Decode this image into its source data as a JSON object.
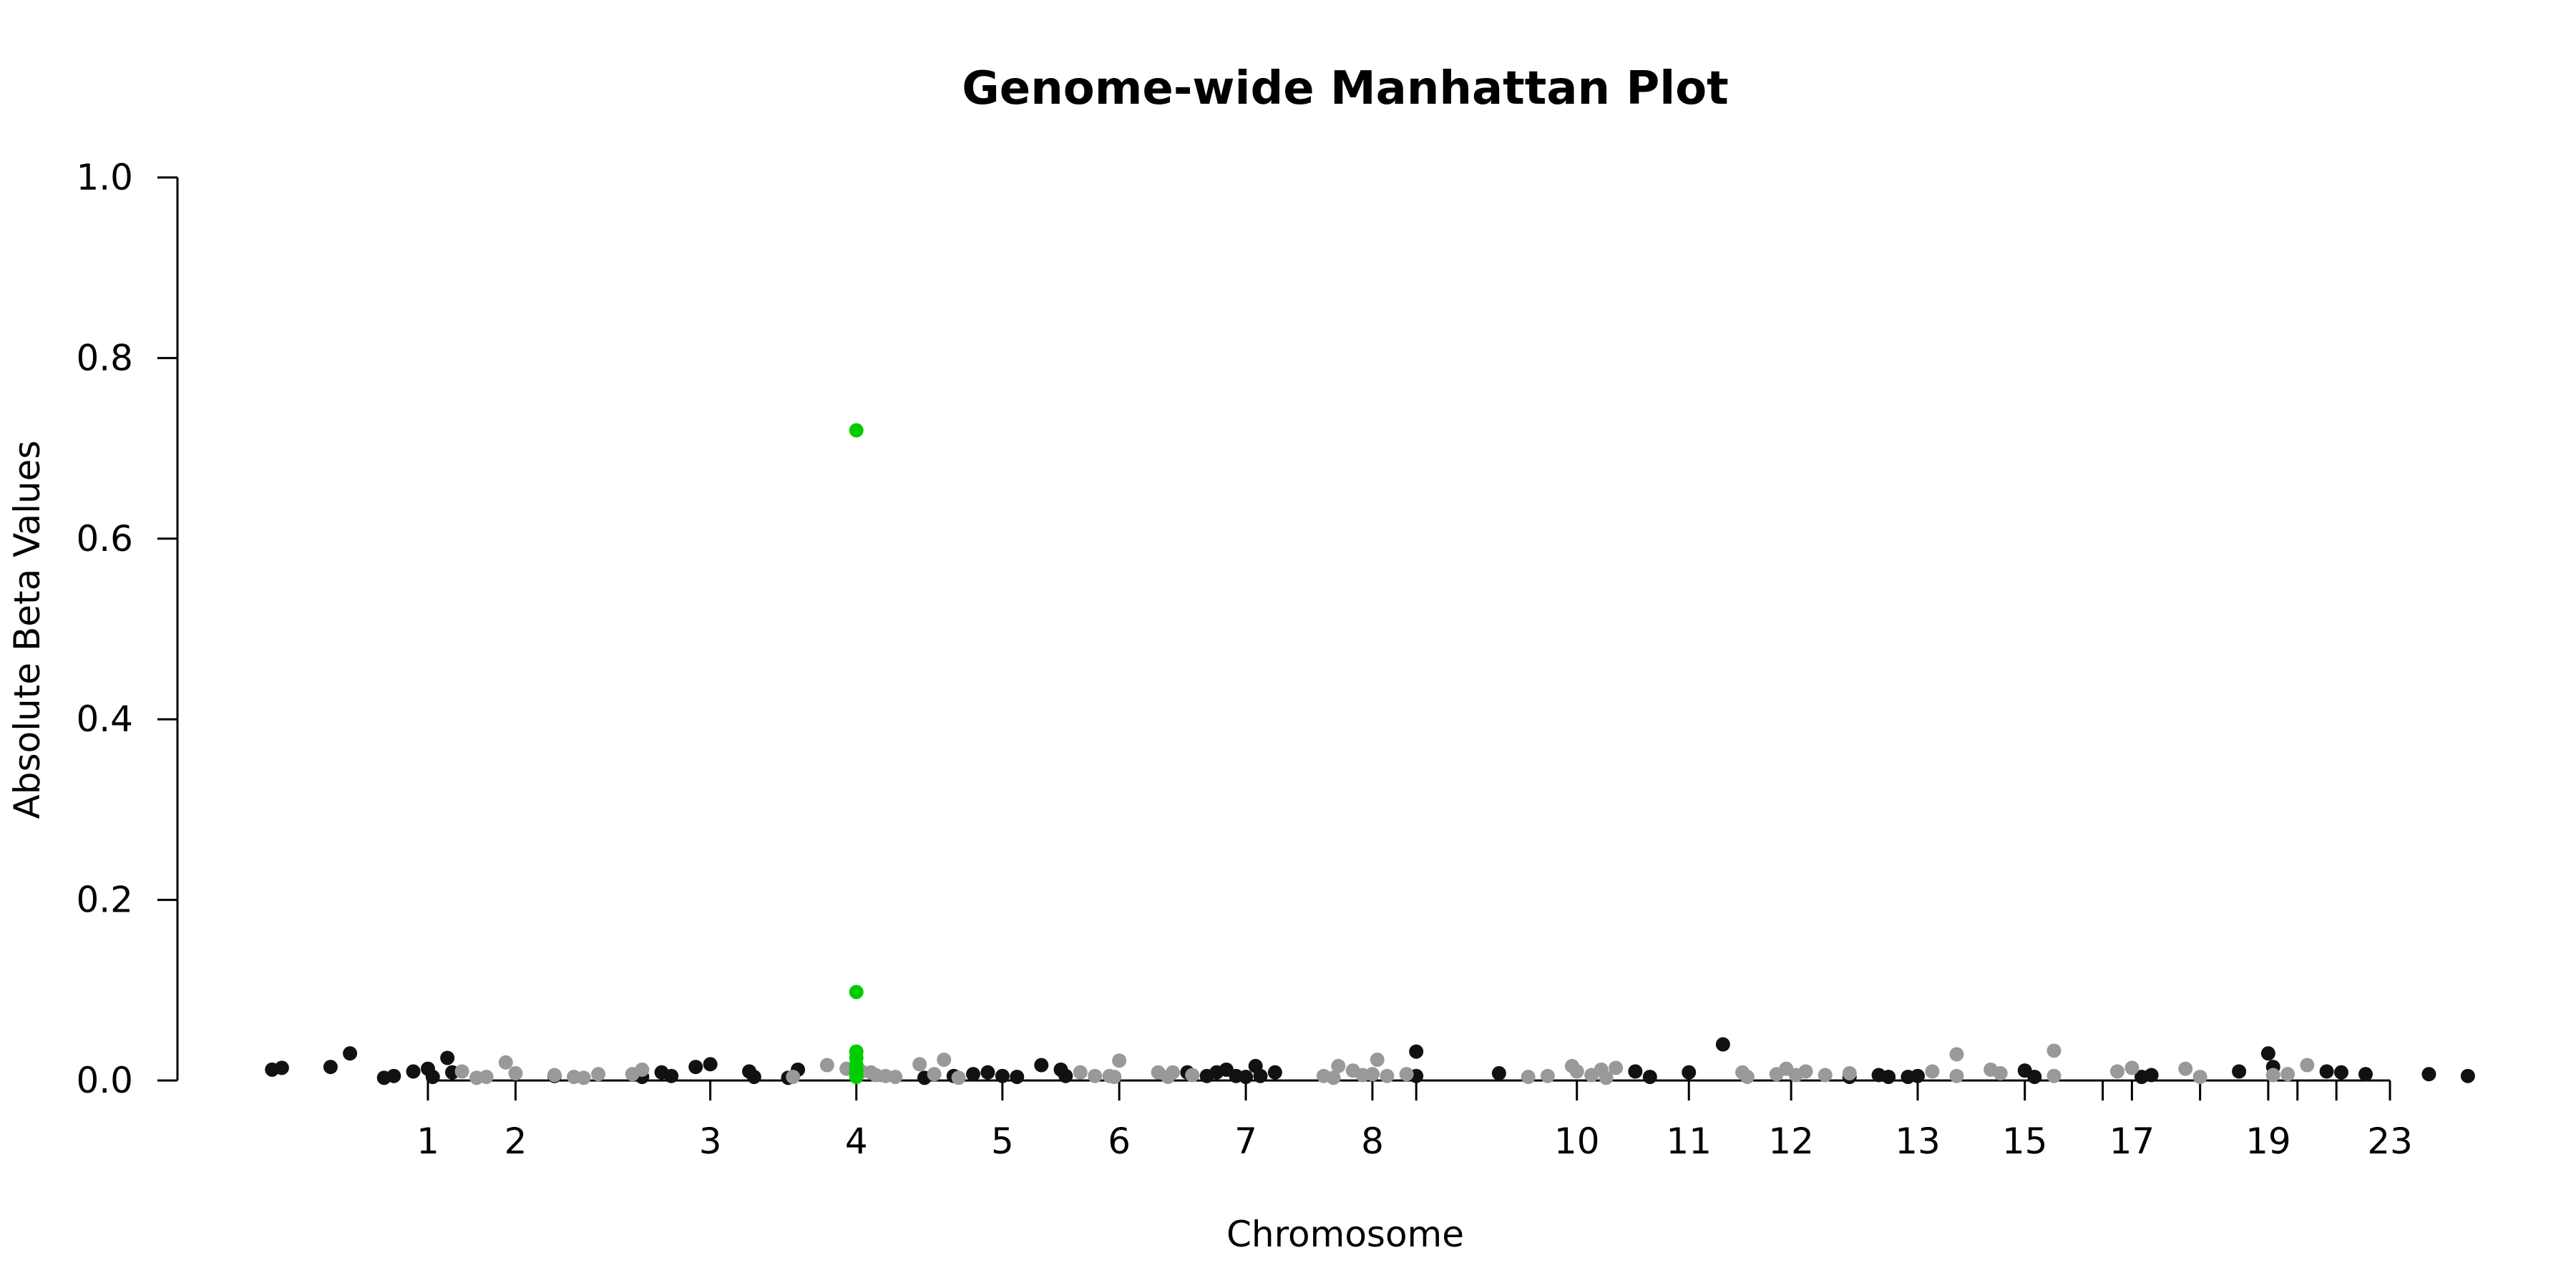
{
  "chart_data": {
    "type": "scatter",
    "title": "Genome-wide Manhattan Plot",
    "xlabel": "Chromosome",
    "ylabel": "Absolute Beta Values",
    "ylim": [
      0,
      1
    ],
    "xlim": [
      -2.5,
      24.5
    ],
    "yticks": [
      0.0,
      0.2,
      0.4,
      0.6,
      0.8,
      1.0
    ],
    "ytick_labels": [
      "0.0",
      "0.2",
      "0.4",
      "0.6",
      "0.8",
      "1.0"
    ],
    "xticks": [
      {
        "x": 1.0,
        "label": "1"
      },
      {
        "x": 1.9,
        "label": "2"
      },
      {
        "x": 3.9,
        "label": "3"
      },
      {
        "x": 5.4,
        "label": "4"
      },
      {
        "x": 6.9,
        "label": "5"
      },
      {
        "x": 8.1,
        "label": "6"
      },
      {
        "x": 9.4,
        "label": "7"
      },
      {
        "x": 10.7,
        "label": "8"
      },
      {
        "x": 11.15,
        "label": ""
      },
      {
        "x": 12.8,
        "label": "10"
      },
      {
        "x": 13.95,
        "label": "11"
      },
      {
        "x": 15.0,
        "label": "12"
      },
      {
        "x": 16.3,
        "label": "13"
      },
      {
        "x": 17.4,
        "label": "15"
      },
      {
        "x": 18.2,
        "label": ""
      },
      {
        "x": 18.5,
        "label": "17"
      },
      {
        "x": 19.2,
        "label": ""
      },
      {
        "x": 19.9,
        "label": "19"
      },
      {
        "x": 20.2,
        "label": ""
      },
      {
        "x": 20.6,
        "label": ""
      },
      {
        "x": 21.15,
        "label": "23"
      }
    ],
    "grid": false,
    "legend": "none",
    "colors": {
      "dark": "#111111",
      "light": "#999999",
      "highlight": "#00cc00"
    },
    "series": [
      {
        "color": "dark",
        "points": [
          [
            -0.6,
            0.012
          ],
          [
            -0.5,
            0.014
          ],
          [
            0.0,
            0.015
          ],
          [
            0.2,
            0.03
          ],
          [
            0.55,
            0.003
          ],
          [
            0.65,
            0.005
          ],
          [
            0.85,
            0.01
          ],
          [
            1.0,
            0.013
          ],
          [
            1.05,
            0.004
          ],
          [
            1.2,
            0.025
          ],
          [
            1.25,
            0.009
          ],
          [
            2.3,
            0.005
          ],
          [
            3.2,
            0.004
          ],
          [
            3.4,
            0.009
          ],
          [
            3.5,
            0.005
          ],
          [
            3.75,
            0.015
          ],
          [
            3.9,
            0.018
          ],
          [
            4.3,
            0.01
          ],
          [
            4.35,
            0.004
          ],
          [
            4.7,
            0.003
          ],
          [
            4.8,
            0.012
          ],
          [
            6.1,
            0.003
          ],
          [
            6.4,
            0.005
          ],
          [
            6.6,
            0.007
          ],
          [
            6.75,
            0.009
          ],
          [
            6.9,
            0.005
          ],
          [
            7.05,
            0.004
          ],
          [
            7.3,
            0.017
          ],
          [
            7.5,
            0.012
          ],
          [
            7.55,
            0.005
          ],
          [
            8.8,
            0.009
          ],
          [
            9.0,
            0.005
          ],
          [
            9.1,
            0.009
          ],
          [
            9.2,
            0.012
          ],
          [
            9.3,
            0.005
          ],
          [
            9.4,
            0.004
          ],
          [
            9.5,
            0.016
          ],
          [
            9.55,
            0.005
          ],
          [
            9.7,
            0.009
          ],
          [
            11.15,
            0.032
          ],
          [
            11.15,
            0.005
          ],
          [
            12.0,
            0.008
          ],
          [
            13.4,
            0.01
          ],
          [
            13.55,
            0.004
          ],
          [
            13.95,
            0.009
          ],
          [
            14.3,
            0.04
          ],
          [
            15.6,
            0.004
          ],
          [
            15.9,
            0.006
          ],
          [
            16.0,
            0.004
          ],
          [
            16.2,
            0.004
          ],
          [
            16.3,
            0.005
          ],
          [
            17.4,
            0.011
          ],
          [
            17.5,
            0.004
          ],
          [
            18.6,
            0.004
          ],
          [
            18.7,
            0.006
          ],
          [
            19.6,
            0.01
          ],
          [
            19.9,
            0.03
          ],
          [
            19.95,
            0.015
          ],
          [
            20.5,
            0.01
          ],
          [
            20.65,
            0.009
          ],
          [
            20.9,
            0.007
          ],
          [
            21.55,
            0.007
          ],
          [
            21.95,
            0.005
          ]
        ]
      },
      {
        "color": "light",
        "points": [
          [
            1.35,
            0.01
          ],
          [
            1.5,
            0.003
          ],
          [
            1.6,
            0.004
          ],
          [
            1.8,
            0.02
          ],
          [
            1.9,
            0.008
          ],
          [
            2.3,
            0.006
          ],
          [
            2.5,
            0.004
          ],
          [
            2.6,
            0.003
          ],
          [
            2.75,
            0.007
          ],
          [
            3.1,
            0.007
          ],
          [
            3.2,
            0.012
          ],
          [
            4.75,
            0.004
          ],
          [
            5.1,
            0.017
          ],
          [
            5.3,
            0.013
          ],
          [
            5.45,
            0.01
          ],
          [
            5.55,
            0.009
          ],
          [
            5.6,
            0.006
          ],
          [
            5.7,
            0.005
          ],
          [
            5.8,
            0.004
          ],
          [
            6.05,
            0.018
          ],
          [
            6.2,
            0.007
          ],
          [
            6.3,
            0.023
          ],
          [
            6.45,
            0.003
          ],
          [
            7.7,
            0.009
          ],
          [
            7.85,
            0.005
          ],
          [
            8.0,
            0.005
          ],
          [
            8.05,
            0.004
          ],
          [
            8.1,
            0.022
          ],
          [
            8.5,
            0.009
          ],
          [
            8.6,
            0.004
          ],
          [
            8.65,
            0.009
          ],
          [
            8.85,
            0.006
          ],
          [
            10.2,
            0.005
          ],
          [
            10.3,
            0.003
          ],
          [
            10.35,
            0.016
          ],
          [
            10.5,
            0.011
          ],
          [
            10.6,
            0.006
          ],
          [
            10.7,
            0.007
          ],
          [
            10.75,
            0.023
          ],
          [
            10.85,
            0.005
          ],
          [
            11.05,
            0.007
          ],
          [
            12.3,
            0.004
          ],
          [
            12.5,
            0.005
          ],
          [
            12.75,
            0.016
          ],
          [
            12.8,
            0.01
          ],
          [
            12.95,
            0.006
          ],
          [
            13.05,
            0.012
          ],
          [
            13.1,
            0.003
          ],
          [
            13.2,
            0.014
          ],
          [
            14.5,
            0.009
          ],
          [
            14.55,
            0.004
          ],
          [
            14.85,
            0.007
          ],
          [
            14.95,
            0.013
          ],
          [
            15.05,
            0.006
          ],
          [
            15.15,
            0.01
          ],
          [
            15.35,
            0.006
          ],
          [
            15.6,
            0.008
          ],
          [
            16.45,
            0.01
          ],
          [
            16.7,
            0.029
          ],
          [
            16.7,
            0.005
          ],
          [
            17.05,
            0.012
          ],
          [
            17.15,
            0.008
          ],
          [
            17.7,
            0.033
          ],
          [
            17.7,
            0.005
          ],
          [
            18.35,
            0.01
          ],
          [
            18.5,
            0.014
          ],
          [
            19.05,
            0.013
          ],
          [
            19.2,
            0.004
          ],
          [
            19.95,
            0.006
          ],
          [
            20.1,
            0.007
          ],
          [
            20.3,
            0.017
          ]
        ]
      },
      {
        "color": "highlight",
        "points": [
          [
            5.4,
            0.72
          ],
          [
            5.4,
            0.098
          ],
          [
            5.4,
            0.032
          ],
          [
            5.4,
            0.025
          ],
          [
            5.4,
            0.017
          ],
          [
            5.4,
            0.011
          ],
          [
            5.4,
            0.007
          ],
          [
            5.4,
            0.004
          ]
        ]
      }
    ]
  }
}
